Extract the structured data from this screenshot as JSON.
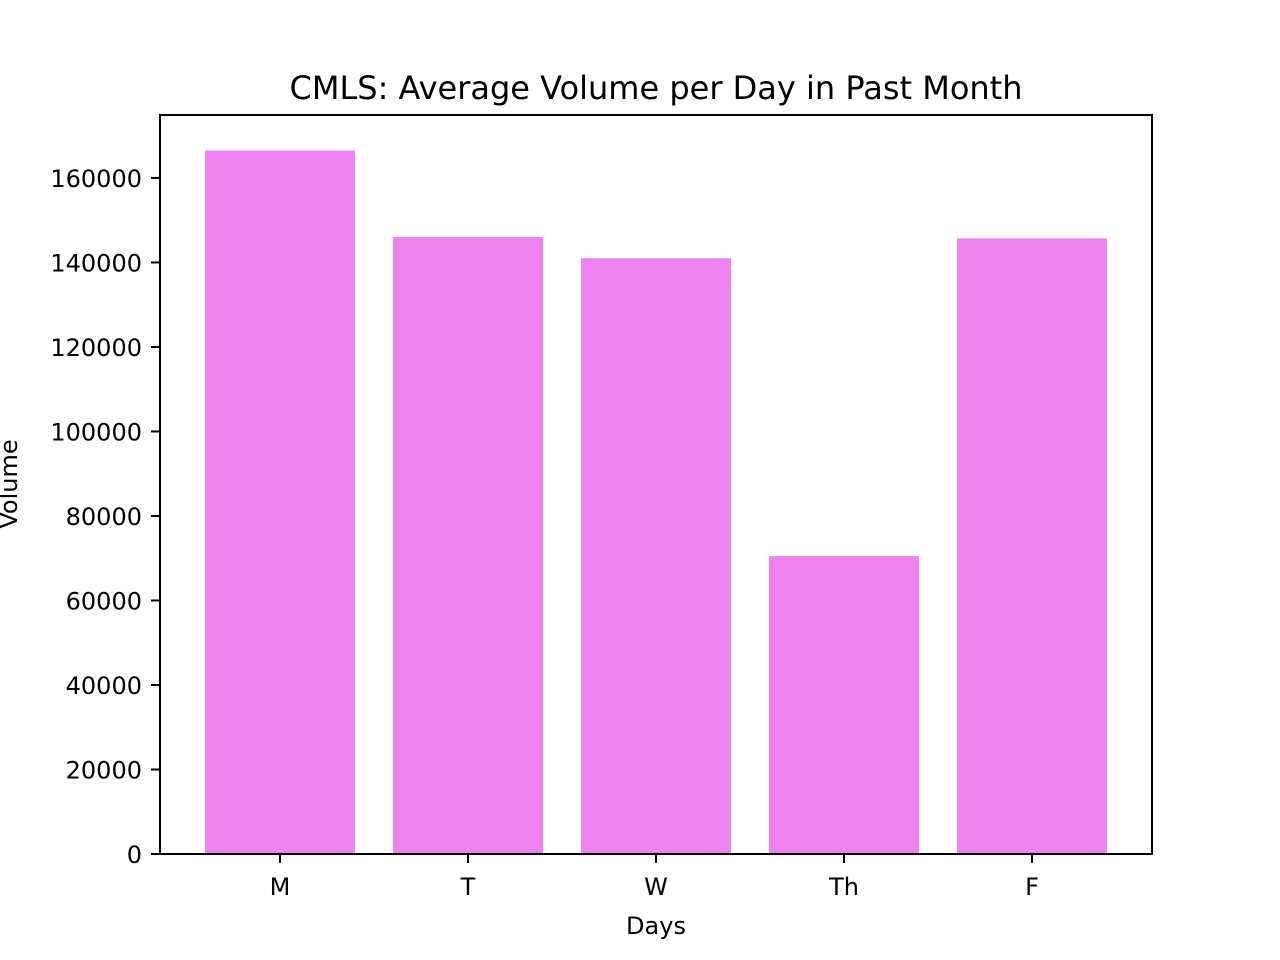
{
  "chart_data": {
    "type": "bar",
    "title": "CMLS: Average Volume per Day in Past Month",
    "xlabel": "Days",
    "ylabel": "Volume",
    "categories": [
      "M",
      "T",
      "W",
      "Th",
      "F"
    ],
    "values": [
      166500,
      146000,
      141000,
      70500,
      145700
    ],
    "ylim": [
      0,
      174900
    ],
    "yticks": [
      0,
      20000,
      40000,
      60000,
      80000,
      100000,
      120000,
      140000,
      160000
    ],
    "grid": false,
    "bar_color": "#ee82ee"
  }
}
